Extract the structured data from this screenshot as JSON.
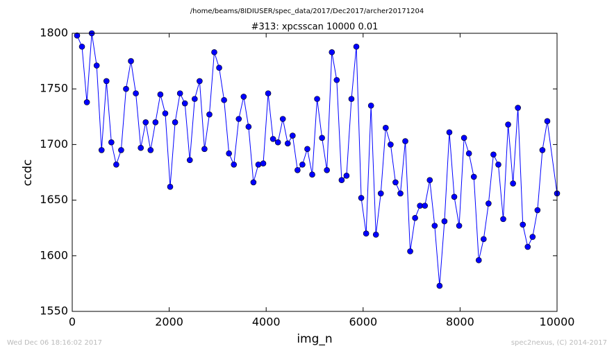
{
  "chart_data": {
    "type": "line",
    "suptitle": "/home/beams/8IDIUSER/spec_data/2017/Dec2017/archer20171204",
    "title": "#313: xpcsscan 10000 0.01",
    "x_label": "img_n",
    "y_label": "ccdc",
    "footer_left": "Wed Dec 06 18:16:02 2017",
    "footer_right": "spec2nexus, (C) 2014-2017",
    "x": [
      100,
      201,
      302,
      403,
      504,
      605,
      706,
      807,
      908,
      1009,
      1110,
      1211,
      1312,
      1414,
      1515,
      1616,
      1717,
      1818,
      1919,
      2020,
      2122,
      2223,
      2324,
      2425,
      2526,
      2627,
      2728,
      2829,
      2930,
      3031,
      3132,
      3233,
      3334,
      3435,
      3536,
      3637,
      3738,
      3839,
      3940,
      4041,
      4142,
      4243,
      4344,
      4445,
      4546,
      4647,
      4748,
      4849,
      4950,
      5051,
      5152,
      5253,
      5355,
      5456,
      5557,
      5658,
      5759,
      5860,
      5961,
      6062,
      6163,
      6264,
      6365,
      6466,
      6567,
      6668,
      6769,
      6870,
      6971,
      7072,
      7173,
      7274,
      7375,
      7476,
      7577,
      7678,
      7779,
      7880,
      7981,
      8082,
      8183,
      8284,
      8385,
      8486,
      8587,
      8688,
      8789,
      8890,
      8991,
      9092,
      9193,
      9294,
      9395,
      9496,
      9597,
      9698,
      9799,
      10000
    ],
    "series": [
      {
        "name": "ccdc",
        "color": "#0000ff",
        "values": [
          1798,
          1788,
          1738,
          1800,
          1771,
          1695,
          1757,
          1702,
          1682,
          1695,
          1750,
          1775,
          1746,
          1697,
          1720,
          1695,
          1720,
          1745,
          1728,
          1662,
          1720,
          1746,
          1737,
          1686,
          1741,
          1757,
          1696,
          1727,
          1783,
          1769,
          1740,
          1692,
          1682,
          1723,
          1743,
          1716,
          1666,
          1682,
          1683,
          1746,
          1705,
          1702,
          1723,
          1701,
          1708,
          1677,
          1682,
          1696,
          1673,
          1741,
          1706,
          1677,
          1783,
          1758,
          1668,
          1672,
          1741,
          1788,
          1652,
          1620,
          1735,
          1619,
          1656,
          1715,
          1700,
          1666,
          1656,
          1703,
          1604,
          1634,
          1645,
          1645,
          1668,
          1627,
          1573,
          1631,
          1711,
          1653,
          1627,
          1706,
          1692,
          1671,
          1596,
          1615,
          1647,
          1691,
          1682,
          1633,
          1718,
          1665,
          1733,
          1628,
          1608,
          1617,
          1641,
          1695,
          1721,
          1656
        ]
      }
    ],
    "xlim": [
      0,
      10000
    ],
    "ylim": [
      1550,
      1800
    ],
    "xticks": [
      0,
      2000,
      4000,
      6000,
      8000,
      10000
    ],
    "yticks": [
      1550,
      1600,
      1650,
      1700,
      1750,
      1800
    ],
    "grid": false
  }
}
